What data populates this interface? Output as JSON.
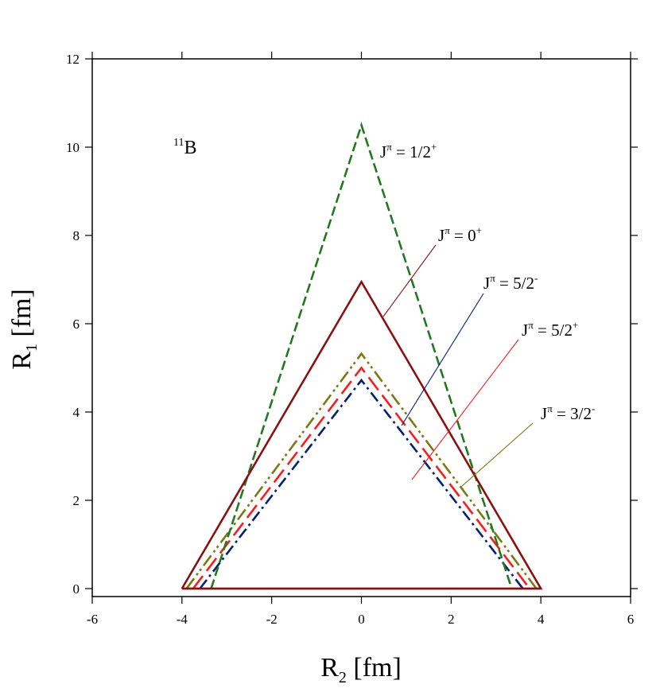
{
  "chart_data": {
    "type": "line",
    "annotation_nucleus": {
      "mass": "11",
      "symbol": "B"
    },
    "xlabel": {
      "base": "R",
      "sub": "2",
      "unit": "[fm]"
    },
    "ylabel": {
      "base": "R",
      "sub": "1",
      "unit": "[fm]"
    },
    "xlim": [
      -6,
      6
    ],
    "ylim": [
      0,
      12
    ],
    "xticks": [
      -6,
      -4,
      -2,
      0,
      2,
      4,
      6
    ],
    "yticks": [
      0,
      2,
      4,
      6,
      8,
      10,
      12
    ],
    "grid": false,
    "series": [
      {
        "name": "J^π = 1/2^+",
        "label": {
          "sup1": "π",
          "value": "1/2",
          "sup2": "+"
        },
        "color": "#1f7a1f",
        "dash": "dash",
        "points": [
          [
            -3.35,
            0
          ],
          [
            0,
            10.5
          ],
          [
            3.35,
            0
          ]
        ]
      },
      {
        "name": "J^π = 0^+",
        "label": {
          "sup1": "π",
          "value": "0",
          "sup2": "+"
        },
        "color": "#8b1010",
        "dash": "solid",
        "points": [
          [
            -4.0,
            0
          ],
          [
            0,
            6.95
          ],
          [
            4.0,
            0
          ],
          [
            -4.0,
            0
          ]
        ]
      },
      {
        "name": "J^π = 5/2^-",
        "label": {
          "sup1": "π",
          "value": "5/2",
          "sup2": "-"
        },
        "color": "#00207a",
        "dash": "dashdot",
        "points": [
          [
            -3.6,
            0
          ],
          [
            0,
            4.72
          ],
          [
            3.6,
            0
          ]
        ]
      },
      {
        "name": "J^π = 5/2^+",
        "label": {
          "sup1": "π",
          "value": "5/2",
          "sup2": "+"
        },
        "color": "#ff1a1a",
        "dash": "longdash",
        "points": [
          [
            -3.75,
            0
          ],
          [
            0,
            5.0
          ],
          [
            3.75,
            0
          ]
        ]
      },
      {
        "name": "J^π = 3/2^-",
        "label": {
          "sup1": "π",
          "value": "3/2",
          "sup2": "-"
        },
        "color": "#7a7a10",
        "dash": "dashdotdot",
        "points": [
          [
            -3.9,
            0
          ],
          [
            0,
            5.32
          ],
          [
            3.9,
            0
          ]
        ]
      }
    ]
  }
}
